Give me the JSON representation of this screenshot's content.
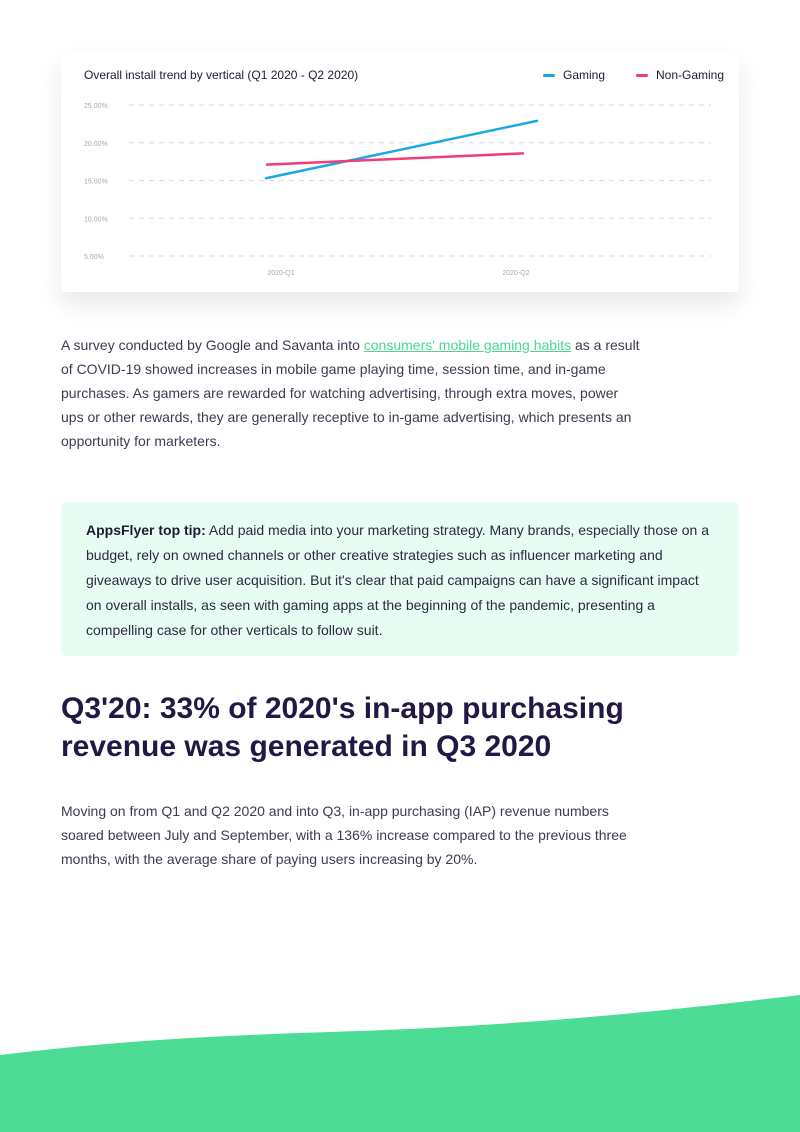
{
  "chart_data": {
    "type": "line",
    "title": "Overall install trend by vertical (Q1 2020 - Q2 2020)",
    "categories": [
      "2020-Q1",
      "2020-Q2"
    ],
    "y_ticks": [
      "25.00%",
      "20.00%",
      "15.00%",
      "10.00%",
      "5.00%"
    ],
    "ylim": [
      5,
      25
    ],
    "grid": "dashed horizontal",
    "legend_position": "top-right",
    "series": [
      {
        "name": "Gaming",
        "color": "#1aa9e6",
        "values": [
          15.3,
          22.9
        ]
      },
      {
        "name": "Non-Gaming",
        "color": "#f23b7a",
        "values": [
          17.1,
          18.6
        ]
      }
    ]
  },
  "paragraph1": {
    "before_link": "A survey conducted by Google and Savanta into ",
    "link_text": "consumers' mobile gaming habits",
    "after_link": " as a result of COVID-19 showed increases in mobile game playing time, session time, and in-game purchases. As gamers are rewarded for watching advertising, through extra moves, power ups or other rewards, they are generally receptive to in-game advertising, which presents an opportunity for marketers."
  },
  "tip": {
    "label": "AppsFlyer top tip:",
    "text": " Add paid media into your marketing strategy. Many brands, especially those on a budget, rely on owned channels or other creative strategies such as influencer marketing and giveaways to drive user acquisition. But it's clear that paid campaigns can have a significant impact on overall installs, as seen with gaming apps at the beginning of the pandemic, presenting a compelling case for other verticals to follow suit."
  },
  "section": {
    "heading": "Q3'20: 33% of 2020's in-app purchasing revenue was generated in Q3 2020",
    "paragraph": "Moving on from Q1 and Q2 2020 and into Q3, in-app purchasing (IAP) revenue numbers soared between July and September, with a 136% increase compared to the previous three months, with the average share of paying users increasing by 20%."
  },
  "colors": {
    "accent_green": "#4cd693",
    "tip_bg": "#e7fdf3",
    "heading": "#231845"
  }
}
